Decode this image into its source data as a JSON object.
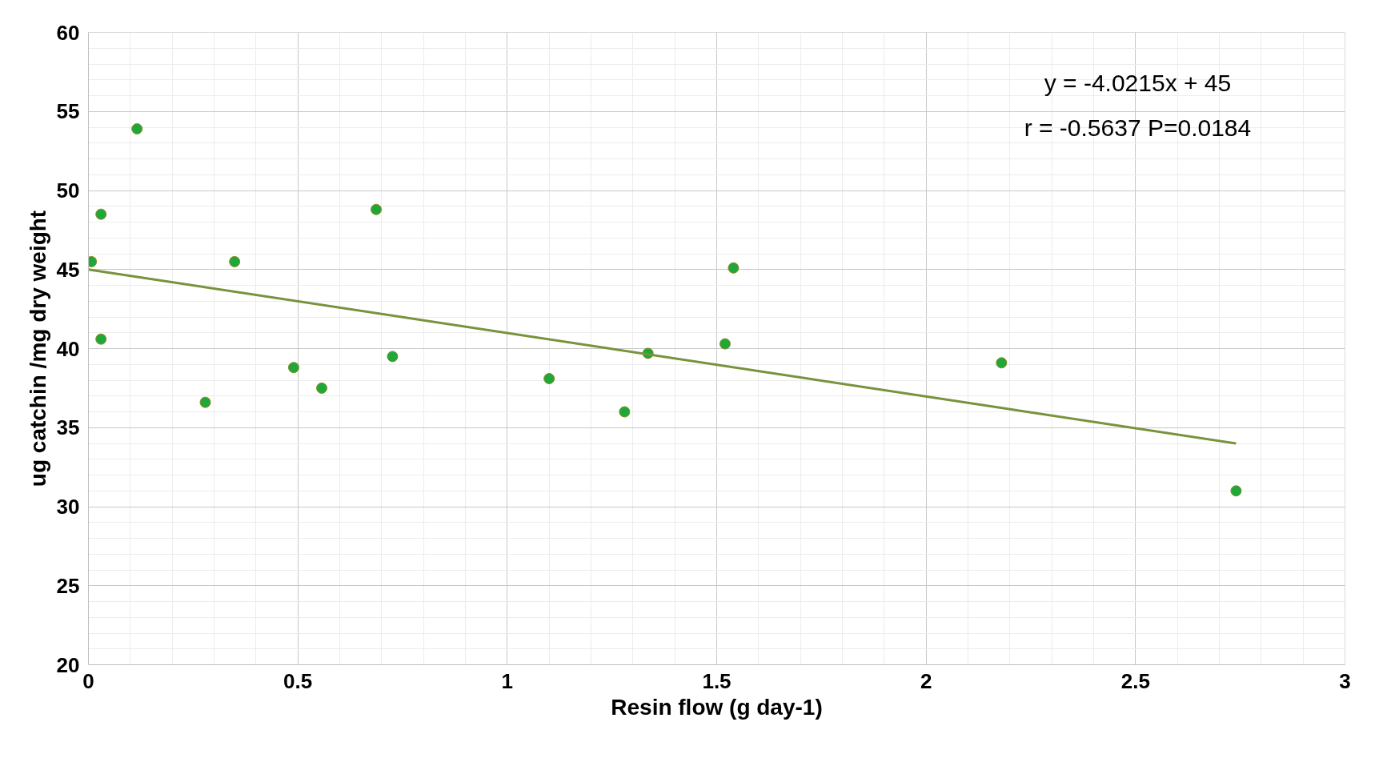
{
  "chart_data": {
    "type": "scatter",
    "xlabel": "Resin flow (g day-1)",
    "ylabel": "ug catchin /mg dry weight",
    "xlim": [
      0,
      3
    ],
    "ylim": [
      20,
      60
    ],
    "xticks": [
      0,
      0.5,
      1,
      1.5,
      2,
      2.5,
      3
    ],
    "yticks": [
      20,
      25,
      30,
      35,
      40,
      45,
      50,
      55,
      60
    ],
    "grid": true,
    "annotations": [
      "y = -4.0215x + 45",
      "r = -0.5637 P=0.0184"
    ],
    "series": [
      {
        "marker": "circle",
        "color": "#1fa83a",
        "x": [
          0.007,
          0.03,
          0.03,
          0.116,
          0.279,
          0.349,
          0.49,
          0.557,
          0.687,
          0.726,
          1.1,
          1.28,
          1.336,
          1.52,
          1.54,
          2.18,
          2.74
        ],
        "values": [
          45.5,
          48.5,
          40.6,
          53.9,
          36.6,
          45.5,
          38.8,
          37.5,
          48.8,
          39.5,
          38.1,
          36.0,
          39.7,
          40.3,
          45.1,
          39.1,
          31.0
        ]
      },
      {
        "type": "line",
        "marker": "none",
        "color": "#77933c",
        "line_style": "solid",
        "x": [
          0,
          2.74
        ],
        "values": [
          45,
          34.0
        ]
      }
    ]
  }
}
